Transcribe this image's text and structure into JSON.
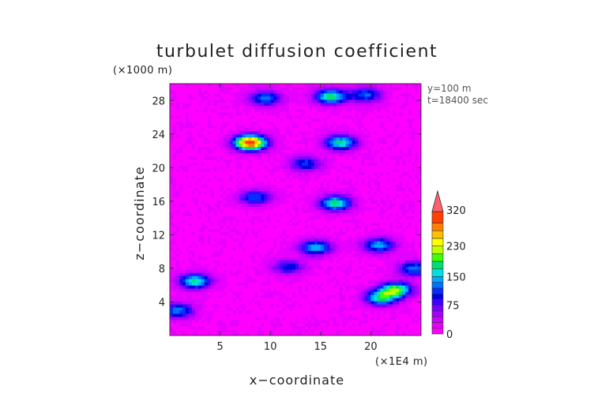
{
  "chart_data": {
    "type": "heatmap",
    "title": "turbulet diffusion coefficient",
    "xlabel": "x−coordinate",
    "ylabel": "z−coordinate",
    "x_unit": "(×1E4 m)",
    "y_unit": "(×1000 m)",
    "annotations": [
      "y=100 m",
      "t=18400 sec"
    ],
    "xlim": [
      0,
      25
    ],
    "ylim": [
      0,
      30
    ],
    "xticks": [
      5,
      10,
      15,
      20
    ],
    "yticks": [
      4,
      8,
      12,
      16,
      20,
      24,
      28
    ],
    "colorbar": {
      "ticks": [
        0,
        75,
        150,
        230,
        320
      ],
      "levels": [
        0,
        15,
        30,
        45,
        60,
        75,
        90,
        105,
        120,
        135,
        150,
        170,
        190,
        210,
        230,
        250,
        270,
        290,
        320,
        340
      ],
      "colors": [
        "#ff00ff",
        "#e600ff",
        "#cc00ff",
        "#a600ff",
        "#7a00ff",
        "#4000ff",
        "#0000e0",
        "#0030ff",
        "#0070ff",
        "#00a8ff",
        "#00e0e0",
        "#00e070",
        "#40ff00",
        "#c0ff00",
        "#ffff00",
        "#ffc000",
        "#ff8000",
        "#ff4000",
        "#ff6070"
      ],
      "extend": "max"
    },
    "background_value": 8,
    "hotspots": [
      {
        "x": 8.0,
        "z": 23.0,
        "value": 300
      },
      {
        "x": 17.0,
        "z": 23.0,
        "value": 160
      },
      {
        "x": 9.5,
        "z": 28.3,
        "value": 120
      },
      {
        "x": 16.0,
        "z": 28.5,
        "value": 170
      },
      {
        "x": 16.5,
        "z": 15.8,
        "value": 170
      },
      {
        "x": 8.5,
        "z": 16.5,
        "value": 110
      },
      {
        "x": 14.5,
        "z": 10.5,
        "value": 140
      },
      {
        "x": 20.8,
        "z": 10.8,
        "value": 130
      },
      {
        "x": 2.5,
        "z": 6.5,
        "value": 160
      },
      {
        "x": 22.5,
        "z": 5.5,
        "value": 190
      },
      {
        "x": 21.0,
        "z": 4.5,
        "value": 160
      },
      {
        "x": 11.8,
        "z": 8.2,
        "value": 90
      },
      {
        "x": 13.5,
        "z": 20.5,
        "value": 100
      },
      {
        "x": 19.5,
        "z": 28.7,
        "value": 110
      },
      {
        "x": 0.8,
        "z": 3.0,
        "value": 120
      },
      {
        "x": 24.3,
        "z": 8.0,
        "value": 120
      }
    ]
  }
}
